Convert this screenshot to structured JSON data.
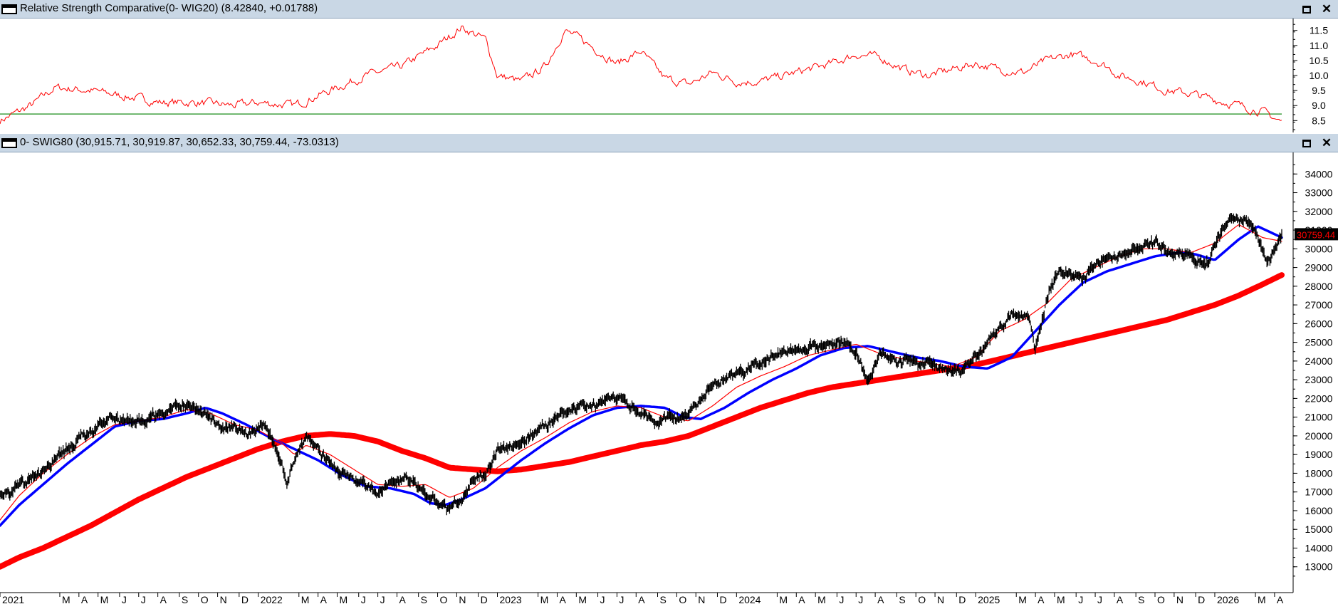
{
  "panes": {
    "top": {
      "title": "Relative Strength Comparative(0- WIG20) (8.42840, +0.01788)"
    },
    "bottom": {
      "title": "0- SWIG80 (30,915.71, 30,919.87, 30,652.33, 30,759.44, -73.0313)"
    }
  },
  "window_buttons": {
    "maximize": "maximize-icon",
    "close": "close-icon"
  },
  "colors": {
    "price": "#000000",
    "ma_fast": "#ff0000",
    "ma_mid": "#0000ff",
    "ma_slow": "#ff0000",
    "rs_line": "#ff0000",
    "rs_ref": "#008000",
    "last_tag_bg": "#000000",
    "last_tag_fg": "#ff0000",
    "titlebar": "#c9d7e5"
  },
  "chart_data": [
    {
      "type": "line",
      "pane": "top",
      "title": "Relative Strength Comparative(0- WIG20) (8.42840, +0.01788)",
      "ylim": [
        8.2,
        11.8
      ],
      "y_ticks": [
        "8.5",
        "9.0",
        "9.5",
        "10.0",
        "10.5",
        "11.0",
        "11.5"
      ],
      "reference_line": 8.72,
      "series": [
        {
          "x": [
            2020.92,
            2021.05,
            2021.15,
            2021.3,
            2021.45,
            2021.6,
            2021.75,
            2021.9,
            2022.0,
            2022.15,
            2022.3,
            2022.45,
            2022.6,
            2022.75,
            2022.85,
            2022.95,
            2023.0,
            2023.1,
            2023.2,
            2023.28,
            2023.35,
            2023.5,
            2023.6,
            2023.7,
            2023.8,
            2023.9,
            2024.0,
            2024.1,
            2024.2,
            2024.3,
            2024.4,
            2024.5,
            2024.6,
            2024.7,
            2024.8,
            2024.9,
            2025.0,
            2025.1,
            2025.2,
            2025.3,
            2025.4,
            2025.5,
            2025.55,
            2025.6,
            2025.7,
            2025.8,
            2025.9,
            2026.0,
            2026.1,
            2026.2,
            2026.28
          ],
          "values": [
            8.5,
            9.0,
            9.6,
            9.5,
            9.3,
            9.1,
            9.1,
            9.0,
            9.1,
            9.0,
            9.5,
            10.0,
            10.3,
            11.0,
            11.6,
            11.2,
            10.0,
            9.8,
            10.3,
            11.5,
            11.2,
            10.4,
            10.8,
            9.9,
            9.7,
            10.1,
            9.8,
            9.8,
            10.0,
            10.2,
            10.4,
            10.7,
            10.6,
            10.2,
            10.0,
            10.2,
            10.4,
            10.2,
            10.1,
            10.5,
            10.7,
            10.5,
            10.3,
            10.0,
            9.8,
            9.5,
            9.4,
            9.2,
            9.0,
            8.8,
            8.45
          ]
        }
      ]
    },
    {
      "type": "line",
      "pane": "bottom",
      "title": "0- SWIG80 (30,915.71, 30,919.87, 30,652.33, 30,759.44, -73.0313)",
      "ylim": [
        12000,
        35000
      ],
      "y_ticks": [
        "13000",
        "14000",
        "15000",
        "16000",
        "17000",
        "18000",
        "19000",
        "20000",
        "21000",
        "22000",
        "23000",
        "24000",
        "25000",
        "26000",
        "27000",
        "28000",
        "29000",
        "30000",
        "31000",
        "32000",
        "33000",
        "34000"
      ],
      "last_value_label": "30759.44",
      "x_ticks": [
        {
          "x": 2020.92,
          "label": "2021"
        },
        {
          "x": 2021.17,
          "label": "M"
        },
        {
          "x": 2021.25,
          "label": "A"
        },
        {
          "x": 2021.33,
          "label": "M"
        },
        {
          "x": 2021.42,
          "label": "J"
        },
        {
          "x": 2021.5,
          "label": "J"
        },
        {
          "x": 2021.58,
          "label": "A"
        },
        {
          "x": 2021.67,
          "label": "S"
        },
        {
          "x": 2021.75,
          "label": "O"
        },
        {
          "x": 2021.83,
          "label": "N"
        },
        {
          "x": 2021.92,
          "label": "D"
        },
        {
          "x": 2022.0,
          "label": "2022"
        },
        {
          "x": 2022.17,
          "label": "M"
        },
        {
          "x": 2022.25,
          "label": "A"
        },
        {
          "x": 2022.33,
          "label": "M"
        },
        {
          "x": 2022.42,
          "label": "J"
        },
        {
          "x": 2022.5,
          "label": "J"
        },
        {
          "x": 2022.58,
          "label": "A"
        },
        {
          "x": 2022.67,
          "label": "S"
        },
        {
          "x": 2022.75,
          "label": "O"
        },
        {
          "x": 2022.83,
          "label": "N"
        },
        {
          "x": 2022.92,
          "label": "D"
        },
        {
          "x": 2023.0,
          "label": "2023"
        },
        {
          "x": 2023.17,
          "label": "M"
        },
        {
          "x": 2023.25,
          "label": "A"
        },
        {
          "x": 2023.33,
          "label": "M"
        },
        {
          "x": 2023.42,
          "label": "J"
        },
        {
          "x": 2023.5,
          "label": "J"
        },
        {
          "x": 2023.58,
          "label": "A"
        },
        {
          "x": 2023.67,
          "label": "S"
        },
        {
          "x": 2023.75,
          "label": "O"
        },
        {
          "x": 2023.83,
          "label": "N"
        },
        {
          "x": 2023.92,
          "label": "D"
        },
        {
          "x": 2024.0,
          "label": "2024"
        },
        {
          "x": 2024.17,
          "label": "M"
        },
        {
          "x": 2024.25,
          "label": "A"
        },
        {
          "x": 2024.33,
          "label": "M"
        },
        {
          "x": 2024.42,
          "label": "J"
        },
        {
          "x": 2024.5,
          "label": "J"
        },
        {
          "x": 2024.58,
          "label": "A"
        },
        {
          "x": 2024.67,
          "label": "S"
        },
        {
          "x": 2024.75,
          "label": "O"
        },
        {
          "x": 2024.83,
          "label": "N"
        },
        {
          "x": 2024.92,
          "label": "D"
        },
        {
          "x": 2025.0,
          "label": "2025"
        },
        {
          "x": 2025.17,
          "label": "M"
        },
        {
          "x": 2025.25,
          "label": "A"
        },
        {
          "x": 2025.33,
          "label": "M"
        },
        {
          "x": 2025.42,
          "label": "J"
        },
        {
          "x": 2025.5,
          "label": "J"
        },
        {
          "x": 2025.58,
          "label": "A"
        },
        {
          "x": 2025.67,
          "label": "S"
        },
        {
          "x": 2025.75,
          "label": "O"
        },
        {
          "x": 2025.83,
          "label": "N"
        },
        {
          "x": 2025.92,
          "label": "D"
        },
        {
          "x": 2026.0,
          "label": "2026"
        },
        {
          "x": 2026.17,
          "label": "M"
        },
        {
          "x": 2026.25,
          "label": "A"
        }
      ],
      "series": [
        {
          "kind": "price",
          "x": [
            2020.92,
            2021.0,
            2021.1,
            2021.2,
            2021.3,
            2021.38,
            2021.45,
            2021.55,
            2021.65,
            2021.72,
            2021.78,
            2021.85,
            2021.9,
            2021.95,
            2022.02,
            2022.08,
            2022.12,
            2022.15,
            2022.2,
            2022.25,
            2022.3,
            2022.38,
            2022.45,
            2022.5,
            2022.57,
            2022.62,
            2022.68,
            2022.75,
            2022.8,
            2022.85,
            2022.9,
            2022.95,
            2023.0,
            2023.1,
            2023.2,
            2023.3,
            2023.4,
            2023.5,
            2023.58,
            2023.65,
            2023.72,
            2023.8,
            2023.88,
            2023.95,
            2024.05,
            2024.15,
            2024.25,
            2024.35,
            2024.45,
            2024.5,
            2024.55,
            2024.6,
            2024.7,
            2024.8,
            2024.9,
            2024.95,
            2025.05,
            2025.15,
            2025.22,
            2025.25,
            2025.3,
            2025.35,
            2025.45,
            2025.55,
            2025.65,
            2025.75,
            2025.8,
            2025.88,
            2025.92,
            2025.97,
            2026.05,
            2026.12,
            2026.18,
            2026.22,
            2026.28
          ],
          "values": [
            17000,
            17200,
            18200,
            19300,
            20200,
            21000,
            20700,
            21000,
            21500,
            21600,
            21100,
            20400,
            20600,
            20000,
            20500,
            19200,
            17500,
            18800,
            20000,
            19500,
            18500,
            17900,
            17200,
            17000,
            17600,
            17700,
            17300,
            16300,
            16100,
            16700,
            17700,
            18000,
            19200,
            19700,
            20500,
            21400,
            21700,
            22000,
            21400,
            20700,
            20900,
            21200,
            22600,
            23000,
            23500,
            24200,
            24700,
            24800,
            25100,
            24300,
            23000,
            24300,
            24100,
            23900,
            23500,
            23500,
            25000,
            26500,
            26400,
            24600,
            27500,
            28900,
            28500,
            29500,
            29900,
            30200,
            29800,
            29800,
            29200,
            29300,
            31400,
            31600,
            30600,
            29200,
            30760
          ]
        },
        {
          "kind": "ma_fast",
          "x": [
            2020.92,
            2021.0,
            2021.1,
            2021.2,
            2021.3,
            2021.4,
            2021.5,
            2021.6,
            2021.7,
            2021.8,
            2021.9,
            2022.0,
            2022.1,
            2022.15,
            2022.2,
            2022.3,
            2022.4,
            2022.5,
            2022.6,
            2022.7,
            2022.8,
            2022.9,
            2023.0,
            2023.1,
            2023.2,
            2023.3,
            2023.4,
            2023.5,
            2023.6,
            2023.7,
            2023.8,
            2023.9,
            2024.0,
            2024.1,
            2024.2,
            2024.3,
            2024.4,
            2024.5,
            2024.6,
            2024.7,
            2024.8,
            2024.9,
            2025.0,
            2025.1,
            2025.2,
            2025.3,
            2025.4,
            2025.5,
            2025.6,
            2025.7,
            2025.8,
            2025.9,
            2026.0,
            2026.1,
            2026.2,
            2026.28
          ],
          "values": [
            15500,
            16800,
            18000,
            19000,
            19900,
            20600,
            20800,
            21000,
            21400,
            21200,
            20600,
            20300,
            19600,
            19000,
            19500,
            19000,
            18200,
            17400,
            17300,
            17400,
            16700,
            17200,
            18300,
            19200,
            19900,
            20700,
            21300,
            21600,
            21500,
            21000,
            20800,
            21600,
            22600,
            23200,
            23700,
            24300,
            24600,
            24900,
            24400,
            24100,
            23900,
            23700,
            24200,
            25600,
            26200,
            27100,
            28400,
            29000,
            29600,
            30000,
            30000,
            29800,
            30300,
            31300,
            30600,
            30400
          ]
        },
        {
          "kind": "ma_mid",
          "x": [
            2020.92,
            2021.0,
            2021.1,
            2021.2,
            2021.3,
            2021.4,
            2021.5,
            2021.6,
            2021.7,
            2021.78,
            2021.85,
            2021.95,
            2022.05,
            2022.15,
            2022.25,
            2022.35,
            2022.45,
            2022.55,
            2022.65,
            2022.72,
            2022.78,
            2022.85,
            2022.95,
            2023.0,
            2023.1,
            2023.2,
            2023.3,
            2023.4,
            2023.5,
            2023.6,
            2023.7,
            2023.78,
            2023.85,
            2023.95,
            2024.05,
            2024.15,
            2024.25,
            2024.35,
            2024.45,
            2024.55,
            2024.65,
            2024.75,
            2024.85,
            2024.95,
            2025.05,
            2025.15,
            2025.25,
            2025.35,
            2025.45,
            2025.55,
            2025.65,
            2025.75,
            2025.85,
            2025.92,
            2026.0,
            2026.1,
            2026.18,
            2026.28
          ],
          "values": [
            15200,
            16300,
            17400,
            18500,
            19500,
            20500,
            20800,
            20900,
            21200,
            21500,
            21200,
            20600,
            19900,
            19300,
            18700,
            17900,
            17300,
            17200,
            16900,
            16400,
            16300,
            16600,
            17200,
            17700,
            18700,
            19600,
            20400,
            21100,
            21500,
            21600,
            21500,
            21000,
            20900,
            21500,
            22300,
            23000,
            23600,
            24300,
            24700,
            24800,
            24500,
            24200,
            24000,
            23700,
            23600,
            24200,
            25600,
            27000,
            28200,
            28800,
            29200,
            29600,
            29800,
            29700,
            29400,
            30500,
            31200,
            30600
          ]
        },
        {
          "kind": "ma_slow",
          "x": [
            2020.92,
            2021.0,
            2021.1,
            2021.2,
            2021.3,
            2021.4,
            2021.5,
            2021.6,
            2021.7,
            2021.8,
            2021.9,
            2022.0,
            2022.1,
            2022.2,
            2022.3,
            2022.4,
            2022.5,
            2022.6,
            2022.7,
            2022.8,
            2022.9,
            2023.0,
            2023.1,
            2023.2,
            2023.3,
            2023.4,
            2023.5,
            2023.6,
            2023.7,
            2023.8,
            2023.9,
            2024.0,
            2024.1,
            2024.2,
            2024.3,
            2024.4,
            2024.5,
            2024.6,
            2024.7,
            2024.8,
            2024.9,
            2025.0,
            2025.1,
            2025.2,
            2025.3,
            2025.4,
            2025.5,
            2025.6,
            2025.7,
            2025.8,
            2025.9,
            2026.0,
            2026.1,
            2026.2,
            2026.28
          ],
          "values": [
            13000,
            13500,
            14000,
            14600,
            15200,
            15900,
            16600,
            17200,
            17800,
            18300,
            18800,
            19300,
            19700,
            20000,
            20100,
            20000,
            19700,
            19200,
            18800,
            18300,
            18200,
            18100,
            18200,
            18400,
            18600,
            18900,
            19200,
            19500,
            19700,
            20000,
            20500,
            21000,
            21500,
            21900,
            22300,
            22600,
            22800,
            23000,
            23200,
            23400,
            23600,
            23800,
            24100,
            24400,
            24700,
            25000,
            25300,
            25600,
            25900,
            26200,
            26600,
            27000,
            27500,
            28100,
            28600
          ]
        }
      ]
    }
  ]
}
